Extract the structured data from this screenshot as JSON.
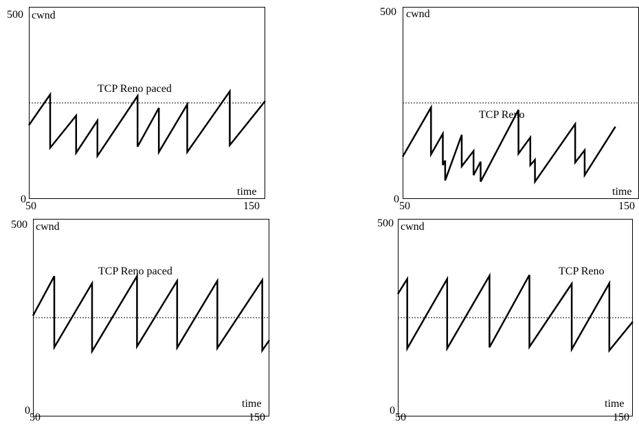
{
  "chart_data": [
    {
      "type": "line",
      "ylabel": "cwnd",
      "xlabel": "time",
      "annotation": "TCP Reno paced",
      "xlim": [
        50,
        150
      ],
      "ylim": [
        0,
        500
      ],
      "x_ticks": [
        "50",
        "150"
      ],
      "y_ticks": [
        "0",
        "500"
      ],
      "reference_line": 250,
      "series": [
        {
          "points": [
            [
              50,
              192
            ],
            [
              59,
              272
            ],
            [
              59,
              133
            ],
            [
              70,
              217
            ],
            [
              70,
              120
            ],
            [
              79,
              204
            ],
            [
              79,
              112
            ],
            [
              96,
              268
            ],
            [
              96,
              136
            ],
            [
              105,
              237
            ],
            [
              105,
              122
            ],
            [
              117,
              246
            ],
            [
              117,
              122
            ],
            [
              135,
              280
            ],
            [
              135,
              140
            ],
            [
              150,
              255
            ]
          ]
        }
      ]
    },
    {
      "type": "line",
      "ylabel": "cwnd",
      "xlabel": "time",
      "annotation": "TCP Reno",
      "xlim": [
        50,
        150
      ],
      "ylim": [
        0,
        500
      ],
      "x_ticks": [
        "50",
        "150"
      ],
      "y_ticks": [
        "0",
        "500"
      ],
      "reference_line": 250,
      "series": [
        {
          "points": [
            [
              50,
              110
            ],
            [
              62,
              238
            ],
            [
              62,
              116
            ],
            [
              67,
              170
            ],
            [
              67,
              88
            ],
            [
              68,
              100
            ],
            [
              68,
              48
            ],
            [
              75,
              167
            ],
            [
              75,
              85
            ],
            [
              80,
              125
            ],
            [
              80,
              62
            ],
            [
              83,
              97
            ],
            [
              83,
              45
            ],
            [
              99,
              232
            ],
            [
              99,
              118
            ],
            [
              104,
              160
            ],
            [
              104,
              88
            ],
            [
              106,
              102
            ],
            [
              106,
              45
            ],
            [
              123,
              195
            ],
            [
              123,
              95
            ],
            [
              127,
              127
            ],
            [
              127,
              62
            ],
            [
              140,
              188
            ]
          ]
        }
      ]
    },
    {
      "type": "line",
      "ylabel": "cwnd",
      "xlabel": "time",
      "annotation": "TCP Reno paced",
      "xlim": [
        50,
        150
      ],
      "ylim": [
        0,
        500
      ],
      "x_ticks": [
        "50",
        "150"
      ],
      "y_ticks": [
        "0",
        "500"
      ],
      "reference_line": 250,
      "series": [
        {
          "points": [
            [
              50,
              255
            ],
            [
              59,
              355
            ],
            [
              59,
              175
            ],
            [
              75,
              337
            ],
            [
              75,
              165
            ],
            [
              94,
              355
            ],
            [
              94,
              177
            ],
            [
              111,
              343
            ],
            [
              111,
              174
            ],
            [
              128,
              343
            ],
            [
              128,
              173
            ],
            [
              147,
              345
            ],
            [
              147,
              167
            ],
            [
              150,
              193
            ]
          ]
        }
      ]
    },
    {
      "type": "line",
      "ylabel": "cwnd",
      "xlabel": "time",
      "annotation": "TCP Reno",
      "xlim": [
        50,
        150
      ],
      "ylim": [
        0,
        500
      ],
      "x_ticks": [
        "50",
        "150"
      ],
      "y_ticks": [
        "0",
        "500"
      ],
      "reference_line": 250,
      "series": [
        {
          "points": [
            [
              50,
              310
            ],
            [
              54,
              348
            ],
            [
              54,
              172
            ],
            [
              71,
              348
            ],
            [
              71,
              172
            ],
            [
              89,
              356
            ],
            [
              89,
              175
            ],
            [
              106,
              358
            ],
            [
              106,
              176
            ],
            [
              124,
              336
            ],
            [
              124,
              170
            ],
            [
              140,
              337
            ],
            [
              140,
              167
            ],
            [
              150,
              240
            ]
          ]
        }
      ]
    }
  ]
}
